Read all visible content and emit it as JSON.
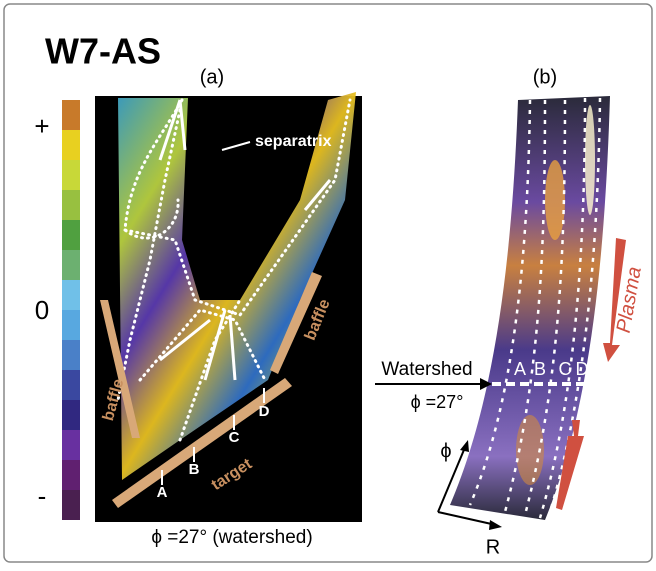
{
  "title": "W7-AS",
  "colorbar": {
    "labels": [
      "+",
      "0",
      "-"
    ]
  },
  "panel_a": {
    "label": "(a)",
    "separatrix": "separatrix",
    "baffle_left": "baffle",
    "baffle_right": "baffle",
    "target": "target",
    "points": [
      "A",
      "B",
      "C",
      "D"
    ],
    "caption": "ϕ =27° (watershed)"
  },
  "panel_b": {
    "label": "(b)",
    "watershed": "Watershed",
    "phi_label": "ϕ =27°",
    "points": [
      "A",
      "B",
      "C",
      "D"
    ],
    "plasma": "Plasma",
    "axes": [
      "ϕ",
      "R"
    ]
  }
}
